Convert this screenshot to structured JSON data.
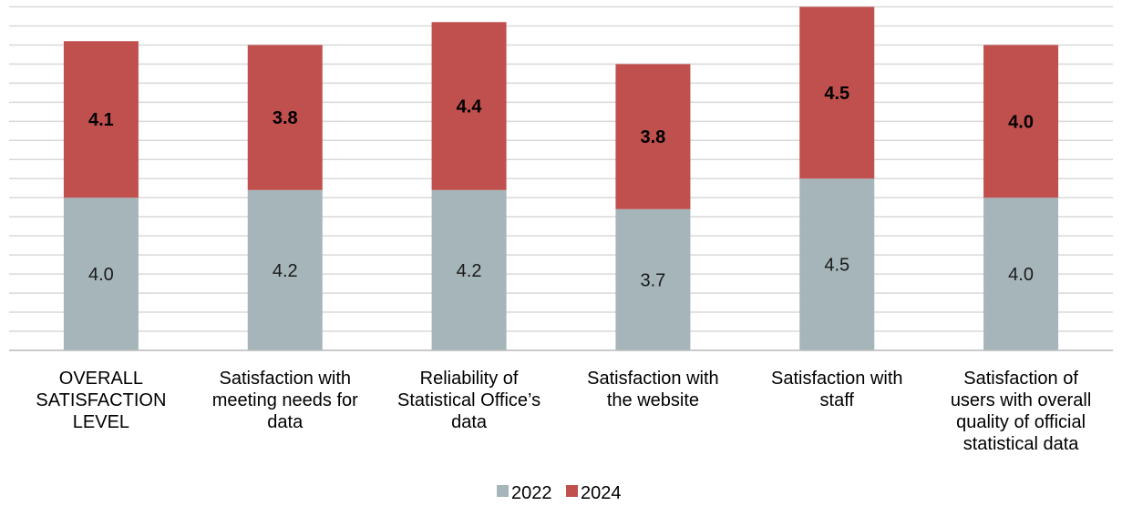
{
  "chart_data": {
    "type": "bar",
    "stacked": true,
    "categories": [
      [
        "OVERALL",
        "SATISFACTION",
        "LEVEL"
      ],
      [
        "Satisfaction with",
        "meeting needs for",
        "data"
      ],
      [
        "Reliability of",
        "Statistical Office’s",
        "data"
      ],
      [
        "Satisfaction with",
        "the website"
      ],
      [
        "Satisfaction with",
        "staff"
      ],
      [
        "Satisfaction of",
        "users with overall",
        "quality of official",
        "statistical data"
      ]
    ],
    "series": [
      {
        "name": "2022",
        "values": [
          4.0,
          4.2,
          4.2,
          3.7,
          4.5,
          4.0
        ],
        "labels": [
          "4.0",
          "4.2",
          "4.2",
          "3.7",
          "4.5",
          "4.0"
        ]
      },
      {
        "name": "2024",
        "values": [
          4.1,
          3.8,
          4.4,
          3.8,
          4.5,
          4.0
        ],
        "labels": [
          "4.1",
          "3.8",
          "4.4",
          "3.8",
          "4.5",
          "4.0"
        ]
      }
    ],
    "ylim": [
      0,
      9
    ],
    "grid": true,
    "legend": "bottom-center",
    "colors": {
      "2022": "#a5b5b9",
      "2024": "#c0504d",
      "grid": "#d9d9d9",
      "axis": "#bfbfbf"
    }
  }
}
